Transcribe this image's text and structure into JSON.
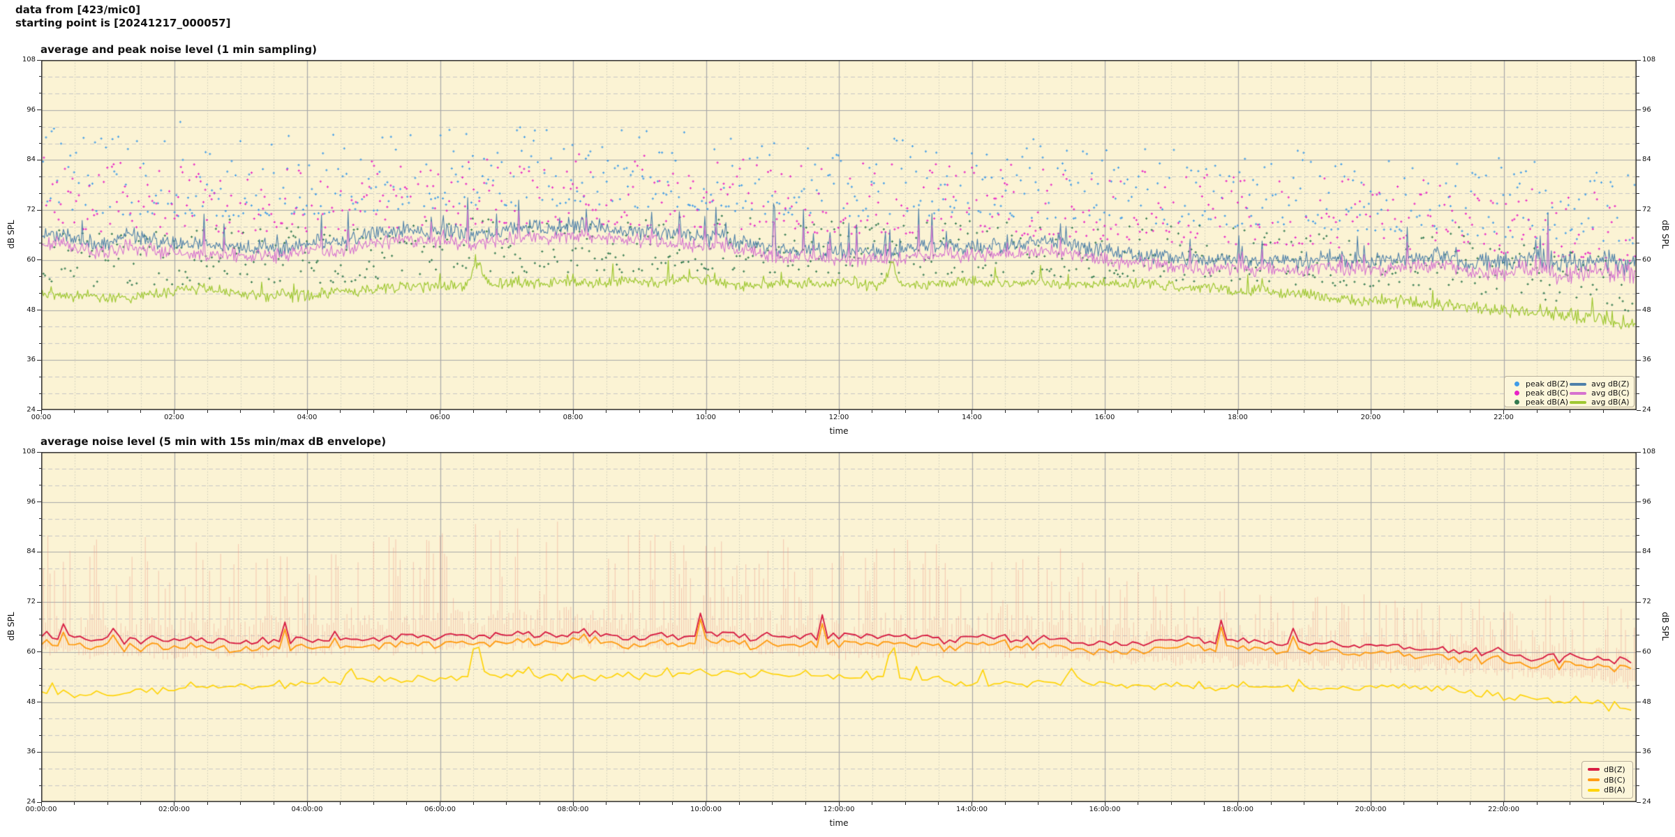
{
  "figure": {
    "header_line1": "data from [423/mic0]",
    "header_line2": "starting point is [20241217_000057]",
    "background": "#ffffff",
    "plot_background": "#fbf3d4",
    "grid_major_color": "#a8a8a8",
    "grid_minor_color": "#c6c6c6",
    "spine_color": "#2b2b2b"
  },
  "chart_data": [
    {
      "type": "line+scatter",
      "title": "average and peak noise level (1 min sampling)",
      "xlabel": "time",
      "ylabel": "dB SPL",
      "ylim": [
        24,
        108
      ],
      "y_major_ticks": [
        108,
        96,
        84,
        72,
        60,
        48,
        36,
        24
      ],
      "y_minor_step": 4,
      "xlim_hours": [
        0,
        24
      ],
      "x_minor_step_hours": 0.5,
      "x_tick_hours": [
        0,
        2,
        4,
        6,
        8,
        10,
        12,
        14,
        16,
        18,
        20,
        22
      ],
      "x_tick_labels": [
        "00:00",
        "02:00",
        "04:00",
        "06:00",
        "08:00",
        "10:00",
        "12:00",
        "14:00",
        "16:00",
        "18:00",
        "20:00",
        "22:00"
      ],
      "sampling_interval_minutes": 1,
      "legend": [
        {
          "label": "peak dB(Z)",
          "swatch": "dot",
          "color": "#3f9ce8"
        },
        {
          "label": "peak dB(C)",
          "swatch": "dot",
          "color": "#e822c6"
        },
        {
          "label": "peak dB(A)",
          "swatch": "dot",
          "color": "#337a50"
        },
        {
          "label": "avg dB(Z)",
          "swatch": "line",
          "color": "#4f81aa"
        },
        {
          "label": "avg dB(C)",
          "swatch": "line",
          "color": "#d672cf"
        },
        {
          "label": "avg dB(A)",
          "swatch": "line",
          "color": "#9fc832"
        }
      ],
      "series": [
        {
          "name": "avg dB(Z)",
          "kind": "line",
          "color": "#4f81aa",
          "noise_dB": 2.3,
          "spike_prob": 0.032,
          "hourly_dB": [
            66.5,
            64.5,
            64.0,
            64.0,
            64.5,
            65.0,
            66.0,
            66.5,
            66.5,
            66.0,
            65.5,
            64.5,
            64.0,
            64.0,
            64.5,
            63.5,
            62.5,
            62.0,
            61.5,
            61.0,
            60.5,
            60.0,
            59.0,
            58.5,
            57.5
          ]
        },
        {
          "name": "avg dB(C)",
          "kind": "line",
          "color": "#d672cf",
          "noise_dB": 2.0,
          "spike_prob": 0.03,
          "hourly_dB": [
            64.3,
            62.3,
            61.8,
            61.8,
            62.3,
            62.8,
            63.8,
            64.3,
            64.3,
            63.8,
            63.3,
            62.3,
            61.8,
            61.8,
            62.3,
            61.3,
            60.3,
            59.8,
            59.3,
            58.8,
            58.3,
            57.8,
            56.8,
            56.3,
            55.3
          ]
        },
        {
          "name": "avg dB(A)",
          "kind": "line",
          "color": "#9fc832",
          "noise_dB": 1.6,
          "spike_prob": 0.018,
          "hourly_dB": [
            52.0,
            51.0,
            51.5,
            52.0,
            52.0,
            52.5,
            54.0,
            54.5,
            54.0,
            54.5,
            55.0,
            54.5,
            54.0,
            54.0,
            53.5,
            53.5,
            53.0,
            52.5,
            52.0,
            51.5,
            51.0,
            50.5,
            49.0,
            47.5,
            45.0
          ],
          "events": [
            {
              "t": 6.55,
              "amp": 6,
              "w": 0.1
            },
            {
              "t": 12.8,
              "amp": 5,
              "w": 0.08
            }
          ]
        },
        {
          "name": "peak dB(Z)",
          "kind": "scatter",
          "color": "#3f9ce8",
          "offset_dB": 6.5,
          "spread_dB": 19,
          "shape": 1.7
        },
        {
          "name": "peak dB(C)",
          "kind": "scatter",
          "color": "#e822c6",
          "offset_dB": 4.5,
          "spread_dB": 17,
          "shape": 1.6
        },
        {
          "name": "peak dB(A)",
          "kind": "scatter",
          "color": "#337a50",
          "offset_dB": 2.5,
          "spread_dB": 13.5,
          "shape": 1.4
        }
      ],
      "variance_by_hour": [
        1,
        1,
        1,
        1,
        1,
        1,
        1,
        1,
        1,
        1,
        1,
        1,
        0.95,
        0.9,
        0.9,
        0.9,
        0.95,
        1,
        1,
        1,
        1.05,
        1.15,
        1.3,
        1.5,
        1.6
      ]
    },
    {
      "type": "line+envelope",
      "title": "average noise level (5 min with 15s min/max dB envelope)",
      "xlabel": "time",
      "ylabel": "dB SPL",
      "ylim": [
        24,
        108
      ],
      "y_major_ticks": [
        108,
        96,
        84,
        72,
        60,
        48,
        36,
        24
      ],
      "y_minor_step": 4,
      "xlim_hours": [
        0,
        24
      ],
      "x_minor_step_hours": 0.5,
      "x_tick_hours": [
        0,
        2,
        4,
        6,
        8,
        10,
        12,
        14,
        16,
        18,
        20,
        22
      ],
      "x_tick_labels": [
        "00:00:00",
        "02:00:00",
        "04:00:00",
        "06:00:00",
        "08:00:00",
        "10:00:00",
        "12:00:00",
        "14:00:00",
        "16:00:00",
        "18:00:00",
        "20:00:00",
        "22:00:00"
      ],
      "sampling_interval_minutes": 5,
      "legend": [
        {
          "label": "dB(Z)",
          "swatch": "line",
          "color": "#d81f44"
        },
        {
          "label": "dB(C)",
          "swatch": "line",
          "color": "#ff9d14"
        },
        {
          "label": "dB(A)",
          "swatch": "line",
          "color": "#ffd40a"
        }
      ],
      "series": [
        {
          "name": "dB(Z)",
          "kind": "line",
          "color": "#d81f44",
          "noise_dB": 1.2,
          "spike_prob": 0.05,
          "hourly_dB": [
            64.0,
            63.5,
            63.5,
            63.5,
            64.0,
            64.5,
            65.0,
            65.5,
            65.5,
            65.0,
            64.5,
            64.0,
            63.5,
            63.5,
            64.0,
            63.5,
            62.5,
            62.0,
            61.5,
            61.0,
            60.5,
            60.0,
            59.0,
            58.0,
            56.5
          ]
        },
        {
          "name": "dB(C)",
          "kind": "line",
          "color": "#ff9d14",
          "gap_below_dBZ": 1.8,
          "noise_dB": 0.5
        },
        {
          "name": "dB(A)",
          "kind": "line",
          "color": "#ffd40a",
          "noise_dB": 1.2,
          "spike_prob": 0.03,
          "hourly_dB": [
            50.5,
            50.0,
            51.0,
            51.5,
            52.0,
            52.5,
            53.5,
            54.0,
            53.5,
            54.0,
            54.5,
            54.0,
            53.5,
            53.5,
            53.0,
            53.0,
            52.5,
            52.0,
            51.5,
            51.0,
            50.5,
            50.0,
            48.5,
            47.0,
            45.0
          ],
          "events": [
            {
              "t": 6.55,
              "amp": 9,
              "w": 0.09
            },
            {
              "t": 12.8,
              "amp": 7.5,
              "w": 0.08
            },
            {
              "t": 15.5,
              "amp": 3.5,
              "w": 0.1
            }
          ]
        }
      ],
      "envelope": {
        "label": "15s min/max dB envelope",
        "color": "#ee9384",
        "alpha": 0.42,
        "max_above_dBC_hourly": [
          26,
          26,
          26,
          25,
          26,
          27,
          28,
          28,
          28,
          27,
          26,
          26,
          26,
          25,
          25,
          24,
          21,
          18,
          16,
          15,
          16,
          14,
          15,
          18,
          16
        ],
        "min_below_dBC_range": [
          0.8,
          3.0
        ]
      },
      "variance_by_hour": [
        1,
        1,
        1,
        1,
        1,
        1,
        1,
        1,
        1,
        1,
        1,
        1,
        1,
        1,
        1,
        1,
        1,
        1,
        1,
        1,
        1,
        1.1,
        1.2,
        1.35,
        1.4
      ]
    }
  ]
}
